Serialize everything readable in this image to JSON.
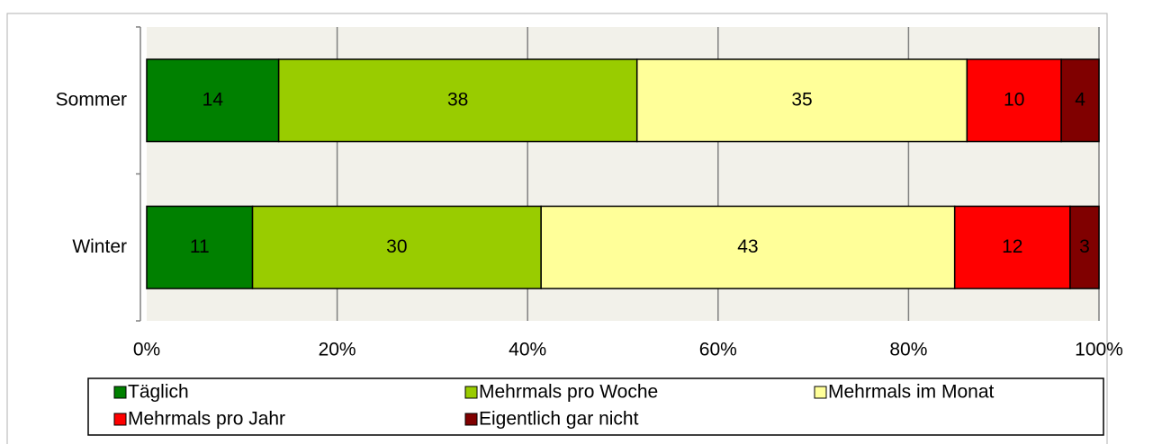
{
  "chart_data": {
    "type": "bar100h",
    "categories": [
      "Sommer",
      "Winter"
    ],
    "series": [
      {
        "name": "Täglich",
        "color": "#008000",
        "values": [
          14,
          11
        ]
      },
      {
        "name": "Mehrmals pro Woche",
        "color": "#99cc00",
        "values": [
          38,
          30
        ]
      },
      {
        "name": "Mehrmals im Monat",
        "color": "#ffff99",
        "values": [
          35,
          43
        ]
      },
      {
        "name": "Mehrmals pro Jahr",
        "color": "#ff0000",
        "values": [
          10,
          12
        ]
      },
      {
        "name": "Eigentlich gar nicht",
        "color": "#800000",
        "values": [
          4,
          3
        ]
      }
    ],
    "xlim": [
      0,
      100
    ],
    "xticks": [
      {
        "value": 0,
        "label": "0%"
      },
      {
        "value": 20,
        "label": "20%"
      },
      {
        "value": 40,
        "label": "40%"
      },
      {
        "value": 60,
        "label": "60%"
      },
      {
        "value": 80,
        "label": "80%"
      },
      {
        "value": 100,
        "label": "100%"
      }
    ],
    "grid": true,
    "legend": "bottom"
  }
}
